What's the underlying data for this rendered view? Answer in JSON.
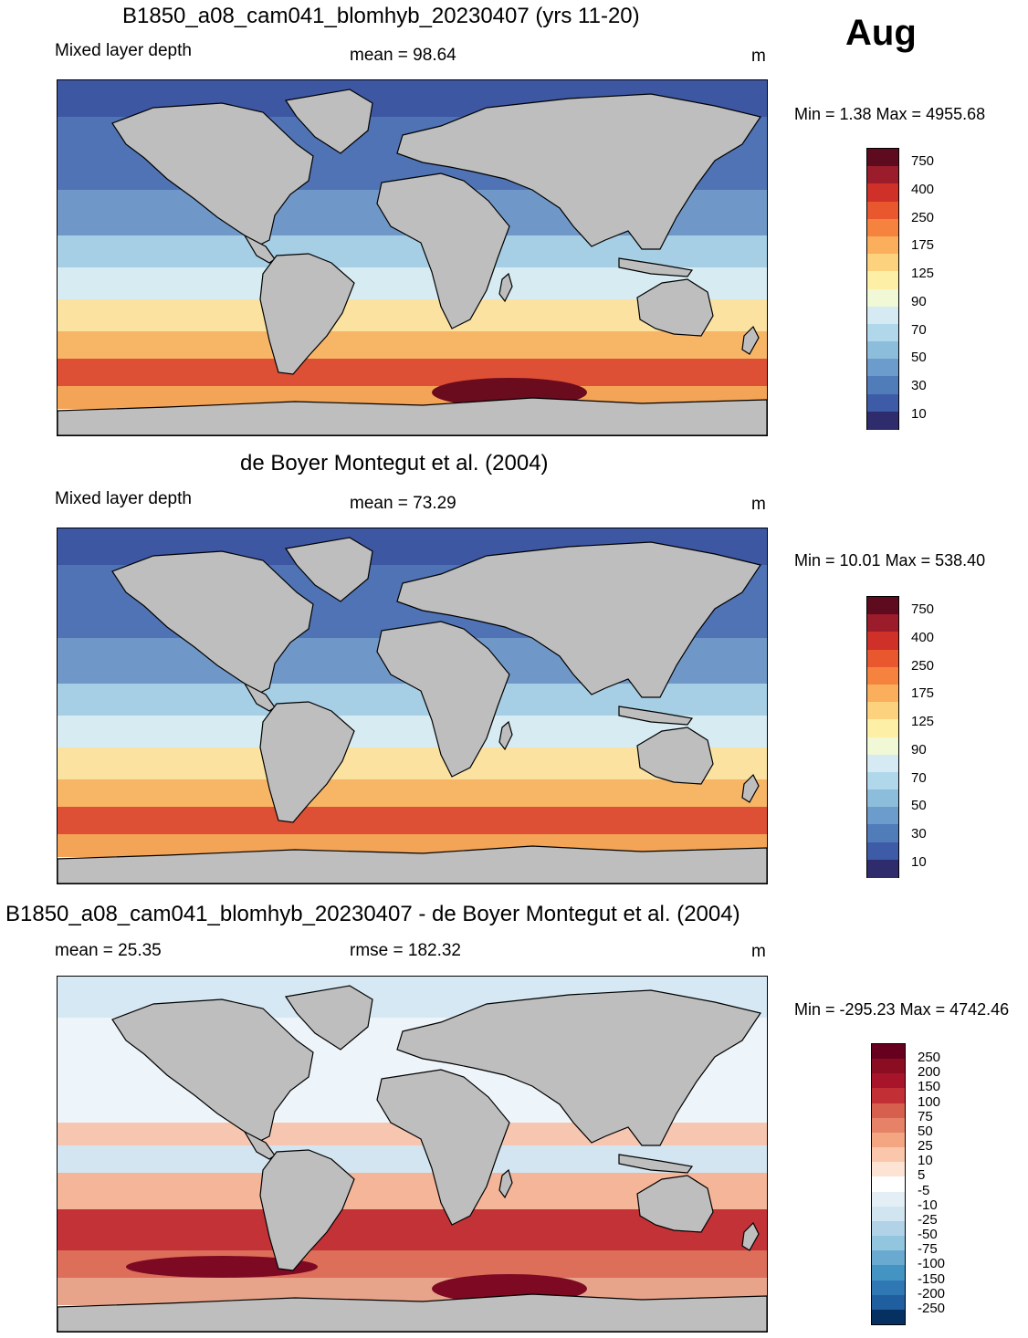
{
  "month": "Aug",
  "panels": [
    {
      "id": "model",
      "title": "B1850_a08_cam041_blomhyb_20230407 (yrs 11-20)",
      "left_label": "Mixed layer depth",
      "center_label": "mean =  98.64",
      "units": "m",
      "minmax": "Min =   1.38 Max = 4955.68",
      "colorbar": {
        "labels": [
          "750",
          "400",
          "250",
          "175",
          "125",
          "90",
          "70",
          "50",
          "30",
          "10"
        ],
        "colors": [
          "#5e0a1f",
          "#9b1c2b",
          "#cf3027",
          "#e9572f",
          "#f5833f",
          "#fbae5b",
          "#fcd27f",
          "#fdf0a6",
          "#f0f8d6",
          "#d5eaf2",
          "#b1d8ea",
          "#8cbedc",
          "#6b9ccb",
          "#507cba",
          "#3d5ba6",
          "#2e2c6d"
        ]
      },
      "map_style": "model"
    },
    {
      "id": "obs",
      "title": "de Boyer Montegut et al. (2004)",
      "left_label": "Mixed layer depth",
      "center_label": "mean =  73.29",
      "units": "m",
      "minmax": "Min =  10.01 Max = 538.40",
      "colorbar": {
        "labels": [
          "750",
          "400",
          "250",
          "175",
          "125",
          "90",
          "70",
          "50",
          "30",
          "10"
        ],
        "colors": [
          "#5e0a1f",
          "#9b1c2b",
          "#cf3027",
          "#e9572f",
          "#f5833f",
          "#fbae5b",
          "#fcd27f",
          "#fdf0a6",
          "#f0f8d6",
          "#d5eaf2",
          "#b1d8ea",
          "#8cbedc",
          "#6b9ccb",
          "#507cba",
          "#3d5ba6",
          "#2e2c6d"
        ]
      },
      "map_style": "obs"
    },
    {
      "id": "diff",
      "title": "B1850_a08_cam041_blomhyb_20230407 - de Boyer Montegut et al. (2004)",
      "left_label": "mean =  25.35",
      "center_label": "rmse = 182.32",
      "units": "m",
      "minmax": "Min = -295.23 Max = 4742.46",
      "colorbar": {
        "labels": [
          "250",
          "200",
          "150",
          "100",
          "75",
          "50",
          "25",
          "10",
          "5",
          "-5",
          "-10",
          "-25",
          "-50",
          "-75",
          "-100",
          "-150",
          "-200",
          "-250"
        ],
        "colors": [
          "#67001f",
          "#8a0d22",
          "#a8152a",
          "#c22f35",
          "#d6604d",
          "#e58267",
          "#f4a582",
          "#fbc7ac",
          "#fde3d4",
          "#ffffff",
          "#e4eef5",
          "#d1e5f0",
          "#b2d3e7",
          "#92c5de",
          "#6aa9d0",
          "#4393c3",
          "#2f78b4",
          "#1f5f9f",
          "#053061"
        ]
      },
      "map_style": "diff"
    }
  ]
}
